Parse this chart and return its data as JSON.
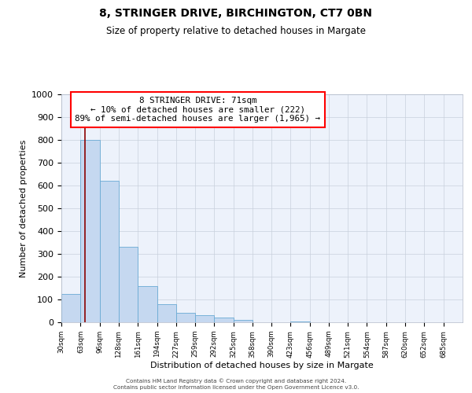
{
  "title": "8, STRINGER DRIVE, BIRCHINGTON, CT7 0BN",
  "subtitle": "Size of property relative to detached houses in Margate",
  "xlabel": "Distribution of detached houses by size in Margate",
  "ylabel": "Number of detached properties",
  "bar_color": "#c5d8f0",
  "bar_edge_color": "#6aaad4",
  "background_color": "#ffffff",
  "plot_bg_color": "#edf2fb",
  "grid_color": "#c8d0dc",
  "annotation_text": "8 STRINGER DRIVE: 71sqm\n← 10% of detached houses are smaller (222)\n89% of semi-detached houses are larger (1,965) →",
  "redline_x": 71,
  "bin_edges": [
    30,
    63,
    96,
    128,
    161,
    194,
    227,
    259,
    292,
    325,
    358,
    390,
    423,
    456,
    489,
    521,
    554,
    587,
    620,
    652,
    685,
    718
  ],
  "bar_heights": [
    125,
    800,
    620,
    330,
    160,
    80,
    40,
    30,
    20,
    10,
    0,
    0,
    5,
    0,
    0,
    0,
    0,
    0,
    0,
    0,
    0
  ],
  "ylim": [
    0,
    1000
  ],
  "yticks": [
    0,
    100,
    200,
    300,
    400,
    500,
    600,
    700,
    800,
    900,
    1000
  ],
  "footer_line1": "Contains HM Land Registry data © Crown copyright and database right 2024.",
  "footer_line2": "Contains public sector information licensed under the Open Government Licence v3.0."
}
